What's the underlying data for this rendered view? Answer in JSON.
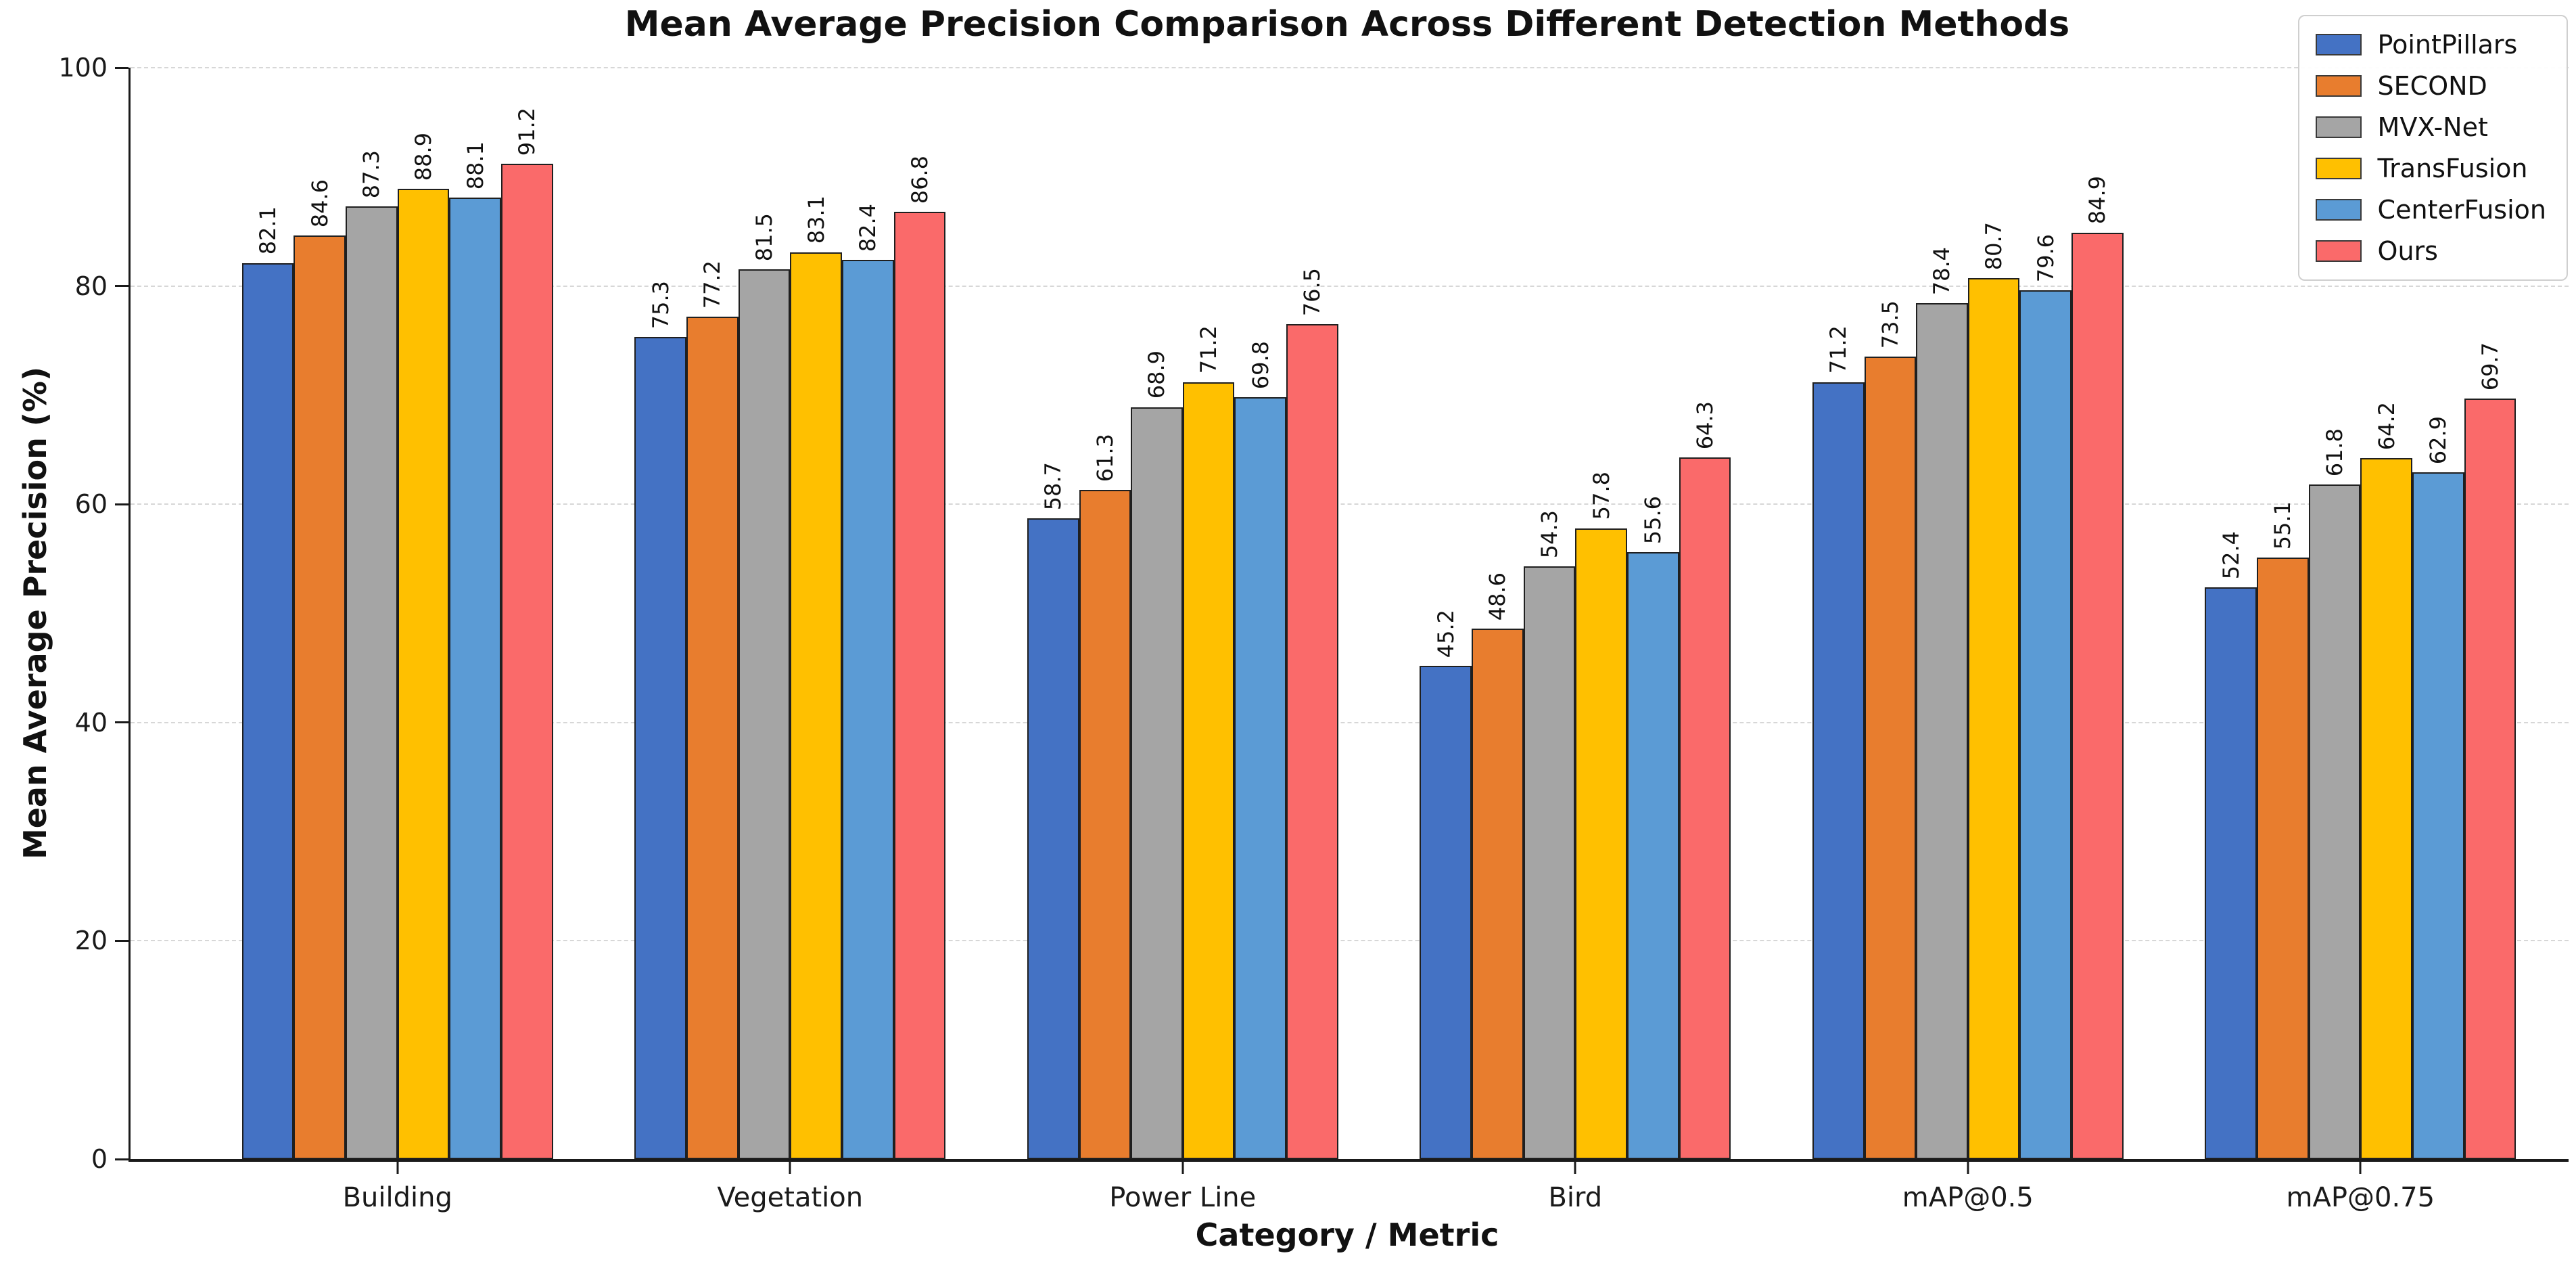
{
  "title": "Mean Average Precision Comparison Across Different Detection Methods",
  "chart_data": {
    "type": "bar",
    "title": "Mean Average Precision Comparison Across Different Detection Methods",
    "xlabel": "Category / Metric",
    "ylabel": "Mean Average Precision (%)",
    "categories": [
      "Building",
      "Vegetation",
      "Power Line",
      "Bird",
      "mAP@0.5",
      "mAP@0.75"
    ],
    "series": [
      {
        "name": "PointPillars",
        "color": "#4472C4",
        "values": [
          82.1,
          75.3,
          58.7,
          45.2,
          71.2,
          52.4
        ]
      },
      {
        "name": "SECOND",
        "color": "#E87D2E",
        "values": [
          84.6,
          77.2,
          61.3,
          48.6,
          73.5,
          55.1
        ]
      },
      {
        "name": "MVX-Net",
        "color": "#A5A5A5",
        "values": [
          87.3,
          81.5,
          68.9,
          54.3,
          78.4,
          61.8
        ]
      },
      {
        "name": "TransFusion",
        "color": "#FFC000",
        "values": [
          88.9,
          83.1,
          71.2,
          57.8,
          80.7,
          64.2
        ]
      },
      {
        "name": "CenterFusion",
        "color": "#5B9BD5",
        "values": [
          88.1,
          82.4,
          69.8,
          55.6,
          79.6,
          62.9
        ]
      },
      {
        "name": "Ours",
        "color": "#FA6A6A",
        "values": [
          91.2,
          86.8,
          76.5,
          64.3,
          84.9,
          69.7
        ]
      }
    ],
    "ylim": [
      0,
      100
    ],
    "yticks": [
      0,
      20,
      40,
      60,
      80,
      100
    ],
    "grid": "horizontal-dashed",
    "legend_position": "upper-right",
    "bar_edge_color": "#1f1f1f",
    "value_labels": "rotated-90-above-bar"
  }
}
